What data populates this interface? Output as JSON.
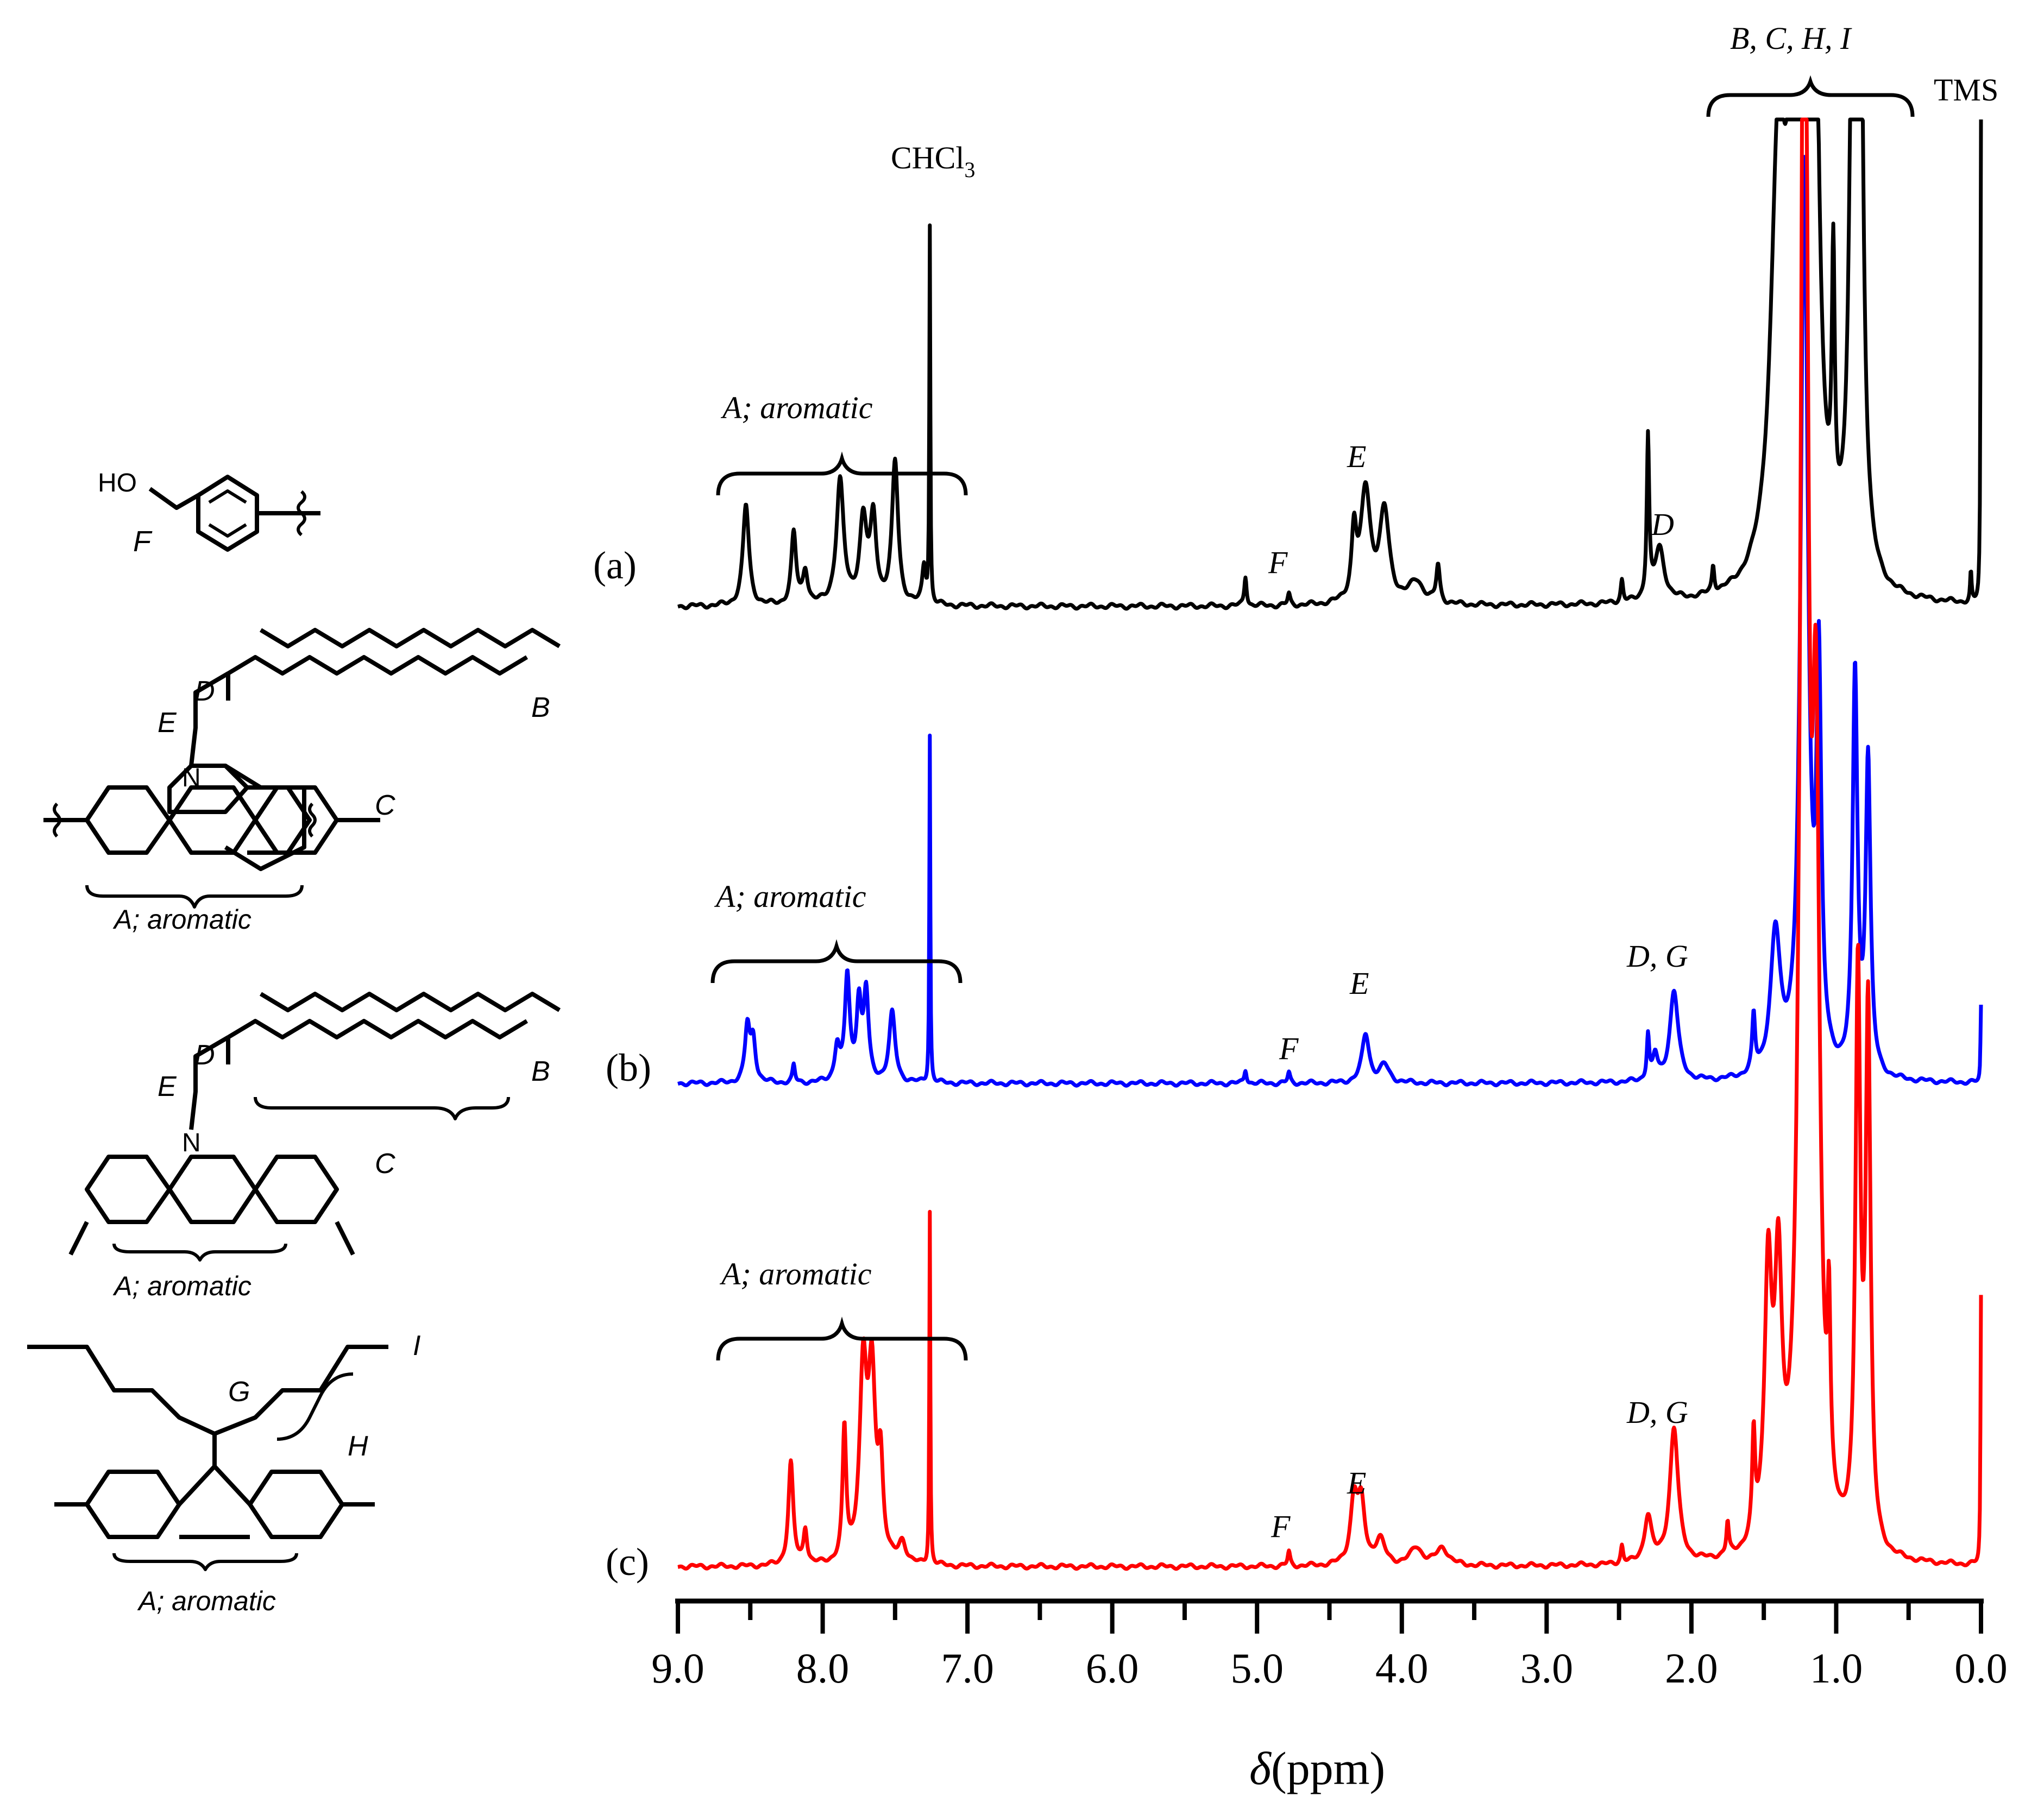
{
  "chart_data": {
    "type": "line",
    "xlabel_symbol": "δ",
    "xlabel_unit": "(ppm)",
    "xlim": [
      9.0,
      0.0
    ],
    "x_reversed": true,
    "ticks": [
      "9.0",
      "8.0",
      "7.0",
      "6.0",
      "5.0",
      "4.0",
      "3.0",
      "2.0",
      "1.0",
      "0.0"
    ],
    "grid": false,
    "series": [
      {
        "name": "(a)",
        "color": "#000000",
        "peaks": [
          {
            "x": 8.53,
            "y": 0.27,
            "w": 0.025
          },
          {
            "x": 8.2,
            "y": 0.19,
            "w": 0.02
          },
          {
            "x": 8.12,
            "y": 0.09,
            "w": 0.02
          },
          {
            "x": 7.88,
            "y": 0.33,
            "w": 0.03
          },
          {
            "x": 7.72,
            "y": 0.22,
            "w": 0.03
          },
          {
            "x": 7.65,
            "y": 0.22,
            "w": 0.025
          },
          {
            "x": 7.5,
            "y": 0.38,
            "w": 0.025
          },
          {
            "x": 7.3,
            "y": 0.1,
            "w": 0.015
          },
          {
            "x": 7.26,
            "y": 1.0,
            "w": 0.004
          },
          {
            "x": 5.08,
            "y": 0.08,
            "w": 0.01
          },
          {
            "x": 4.78,
            "y": 0.03,
            "w": 0.01
          },
          {
            "x": 4.33,
            "y": 0.18,
            "w": 0.02
          },
          {
            "x": 4.25,
            "y": 0.3,
            "w": 0.04
          },
          {
            "x": 4.12,
            "y": 0.24,
            "w": 0.04
          },
          {
            "x": 3.9,
            "y": 0.06,
            "w": 0.06
          },
          {
            "x": 3.75,
            "y": 0.1,
            "w": 0.015
          },
          {
            "x": 2.48,
            "y": 0.06,
            "w": 0.01
          },
          {
            "x": 2.3,
            "y": 0.43,
            "w": 0.01
          },
          {
            "x": 2.22,
            "y": 0.14,
            "w": 0.04
          },
          {
            "x": 1.85,
            "y": 0.07,
            "w": 0.01
          },
          {
            "x": 1.4,
            "y": 1.08,
            "w": 0.06
          },
          {
            "x": 1.28,
            "y": 1.6,
            "w": 0.045
          },
          {
            "x": 1.22,
            "y": 2.0,
            "w": 0.035
          },
          {
            "x": 1.15,
            "y": 1.4,
            "w": 0.035
          },
          {
            "x": 1.02,
            "y": 0.7,
            "w": 0.012
          },
          {
            "x": 0.88,
            "y": 1.9,
            "w": 0.025
          },
          {
            "x": 0.84,
            "y": 1.9,
            "w": 0.025
          },
          {
            "x": 0.07,
            "y": 0.08,
            "w": 0.006
          },
          {
            "x": 0.0,
            "y": 1.3,
            "w": 0.004
          }
        ]
      },
      {
        "name": "(b)",
        "color": "#0000ff",
        "peaks": [
          {
            "x": 8.52,
            "y": 0.16,
            "w": 0.02
          },
          {
            "x": 8.48,
            "y": 0.12,
            "w": 0.02
          },
          {
            "x": 8.2,
            "y": 0.05,
            "w": 0.01
          },
          {
            "x": 7.9,
            "y": 0.1,
            "w": 0.02
          },
          {
            "x": 7.83,
            "y": 0.3,
            "w": 0.02
          },
          {
            "x": 7.75,
            "y": 0.22,
            "w": 0.02
          },
          {
            "x": 7.7,
            "y": 0.25,
            "w": 0.02
          },
          {
            "x": 7.52,
            "y": 0.2,
            "w": 0.025
          },
          {
            "x": 7.26,
            "y": 1.0,
            "w": 0.004
          },
          {
            "x": 5.08,
            "y": 0.04,
            "w": 0.01
          },
          {
            "x": 4.78,
            "y": 0.03,
            "w": 0.01
          },
          {
            "x": 4.25,
            "y": 0.14,
            "w": 0.03
          },
          {
            "x": 4.12,
            "y": 0.05,
            "w": 0.04
          },
          {
            "x": 2.3,
            "y": 0.13,
            "w": 0.01
          },
          {
            "x": 2.25,
            "y": 0.07,
            "w": 0.02
          },
          {
            "x": 2.12,
            "y": 0.26,
            "w": 0.035
          },
          {
            "x": 1.57,
            "y": 0.16,
            "w": 0.012
          },
          {
            "x": 1.42,
            "y": 0.4,
            "w": 0.04
          },
          {
            "x": 1.22,
            "y": 2.6,
            "w": 0.03
          },
          {
            "x": 1.12,
            "y": 1.1,
            "w": 0.02
          },
          {
            "x": 0.87,
            "y": 1.15,
            "w": 0.02
          },
          {
            "x": 0.78,
            "y": 0.9,
            "w": 0.02
          },
          {
            "x": 0.0,
            "y": 0.22,
            "w": 0.004
          }
        ]
      },
      {
        "name": "(c)",
        "color": "#ff0000",
        "peaks": [
          {
            "x": 8.22,
            "y": 0.29,
            "w": 0.02
          },
          {
            "x": 8.12,
            "y": 0.1,
            "w": 0.015
          },
          {
            "x": 7.85,
            "y": 0.37,
            "w": 0.015
          },
          {
            "x": 7.72,
            "y": 0.53,
            "w": 0.03
          },
          {
            "x": 7.66,
            "y": 0.5,
            "w": 0.03
          },
          {
            "x": 7.6,
            "y": 0.25,
            "w": 0.02
          },
          {
            "x": 7.45,
            "y": 0.06,
            "w": 0.03
          },
          {
            "x": 7.26,
            "y": 1.0,
            "w": 0.004
          },
          {
            "x": 4.78,
            "y": 0.04,
            "w": 0.01
          },
          {
            "x": 4.33,
            "y": 0.18,
            "w": 0.03
          },
          {
            "x": 4.28,
            "y": 0.16,
            "w": 0.03
          },
          {
            "x": 4.15,
            "y": 0.07,
            "w": 0.04
          },
          {
            "x": 3.9,
            "y": 0.05,
            "w": 0.05
          },
          {
            "x": 3.72,
            "y": 0.05,
            "w": 0.05
          },
          {
            "x": 2.48,
            "y": 0.05,
            "w": 0.01
          },
          {
            "x": 2.3,
            "y": 0.13,
            "w": 0.03
          },
          {
            "x": 2.12,
            "y": 0.38,
            "w": 0.035
          },
          {
            "x": 1.75,
            "y": 0.09,
            "w": 0.01
          },
          {
            "x": 1.57,
            "y": 0.28,
            "w": 0.012
          },
          {
            "x": 1.47,
            "y": 0.75,
            "w": 0.03
          },
          {
            "x": 1.4,
            "y": 0.7,
            "w": 0.03
          },
          {
            "x": 1.22,
            "y": 5.0,
            "w": 0.03
          },
          {
            "x": 1.14,
            "y": 2.0,
            "w": 0.03
          },
          {
            "x": 1.05,
            "y": 0.48,
            "w": 0.012
          },
          {
            "x": 0.85,
            "y": 1.6,
            "w": 0.02
          },
          {
            "x": 0.78,
            "y": 1.5,
            "w": 0.02
          },
          {
            "x": 0.0,
            "y": 0.76,
            "w": 0.004
          }
        ]
      }
    ]
  },
  "labels": {
    "series_a": "(a)",
    "series_b": "(b)",
    "series_c": "(c)",
    "a_aromatic_a": "A; aromatic",
    "a_chcl3": "CHCl",
    "a_chcl3_sub": "3",
    "a_e": "E",
    "a_f": "F",
    "a_d": "D",
    "a_bchi": "B, C, H, I",
    "a_tms": "TMS",
    "b_aromatic": "A; aromatic",
    "b_e": "E",
    "b_f": "F",
    "b_dg": "D, G",
    "c_aromatic": "A; aromatic",
    "c_e": "E",
    "c_f": "F",
    "c_dg": "D, G"
  },
  "structures": {
    "s1_ho": "HO",
    "s1_f": "F",
    "s2_d": "D",
    "s2_e": "E",
    "s2_n": "N",
    "s2_b": "B",
    "s2_c": "C",
    "s2_aromatic": "A; aromatic",
    "s3_d": "D",
    "s3_e": "E",
    "s3_n": "N",
    "s3_b": "B",
    "s3_c": "C",
    "s3_aromatic": "A; aromatic",
    "s4_g": "G",
    "s4_h": "H",
    "s4_i": "I",
    "s4_aromatic": "A; aromatic"
  }
}
